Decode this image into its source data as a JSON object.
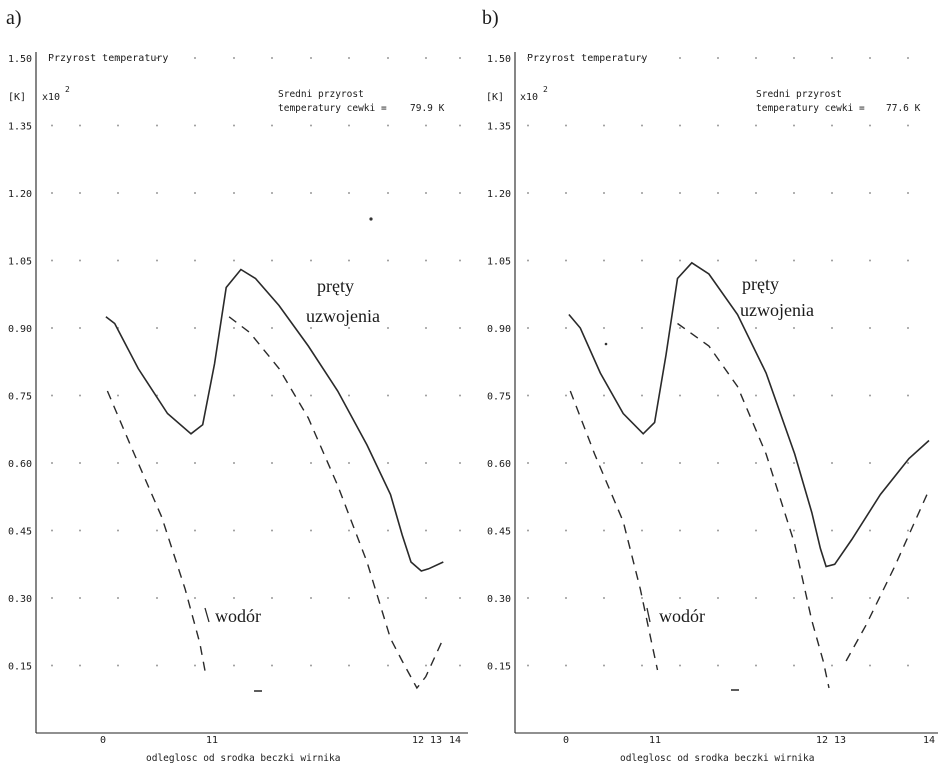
{
  "chart_data": [
    {
      "panel": "a)",
      "type": "line",
      "title": "Przyrost temperatury",
      "ylabel": "[K]",
      "y_multiplier": "x10",
      "y_multiplier_exp": "2",
      "xlabel": "odleglosc od srodka beczki wirnika",
      "ylim": [
        0,
        1.5
      ],
      "y_ticks": [
        "1.50",
        "1.35",
        "1.20",
        "1.05",
        "0.90",
        "0.75",
        "0.60",
        "0.45",
        "0.30",
        "0.15"
      ],
      "x_ticks": [
        "0",
        "11",
        "12",
        "13",
        "14"
      ],
      "annotation_line1": "Sredni przyrost",
      "annotation_line2": "temperatury cewki =",
      "annotation_value": "79.9 K",
      "series": [
        {
          "name": "pręty uzwojenia",
          "style": "solid",
          "points": [
            [
              0.1,
              0.925
            ],
            [
              0.4,
              0.91
            ],
            [
              1.2,
              0.81
            ],
            [
              2.2,
              0.71
            ],
            [
              3.0,
              0.665
            ],
            [
              3.4,
              0.685
            ],
            [
              3.8,
              0.82
            ],
            [
              4.2,
              0.99
            ],
            [
              4.7,
              1.03
            ],
            [
              5.2,
              1.01
            ],
            [
              6.0,
              0.95
            ],
            [
              7.0,
              0.86
            ],
            [
              8.0,
              0.76
            ],
            [
              9.0,
              0.64
            ],
            [
              9.8,
              0.53
            ],
            [
              10.2,
              0.44
            ],
            [
              10.5,
              0.38
            ],
            [
              10.85,
              0.36
            ],
            [
              11.1,
              0.365
            ],
            [
              11.6,
              0.38
            ]
          ]
        },
        {
          "name": "",
          "style": "dashed",
          "points": [
            [
              4.3,
              0.925
            ],
            [
              5.0,
              0.89
            ],
            [
              6.0,
              0.81
            ],
            [
              7.0,
              0.7
            ],
            [
              8.0,
              0.55
            ],
            [
              9.0,
              0.38
            ],
            [
              9.8,
              0.21
            ],
            [
              10.2,
              0.16
            ],
            [
              10.7,
              0.1
            ],
            [
              11.0,
              0.125
            ],
            [
              11.6,
              0.21
            ]
          ]
        },
        {
          "name": "wodór",
          "style": "dashed",
          "points": [
            [
              0.15,
              0.76
            ],
            [
              1.0,
              0.63
            ],
            [
              2.0,
              0.48
            ],
            [
              2.8,
              0.32
            ],
            [
              3.3,
              0.2
            ],
            [
              3.5,
              0.13
            ]
          ]
        }
      ],
      "labels": {
        "rods_line1": "pręty",
        "rods_line2": "uzwojenia",
        "hydrogen": "wodór"
      }
    },
    {
      "panel": "b)",
      "type": "line",
      "title": "Przyrost temperatury",
      "ylabel": "[K]",
      "y_multiplier": "x10",
      "y_multiplier_exp": "2",
      "xlabel": "odleglosc od srodka beczki wirnika",
      "ylim": [
        0,
        1.5
      ],
      "y_ticks": [
        "1.50",
        "1.35",
        "1.20",
        "1.05",
        "0.90",
        "0.75",
        "0.60",
        "0.45",
        "0.30",
        "0.15"
      ],
      "x_ticks": [
        "0",
        "11",
        "12",
        "13",
        "14"
      ],
      "annotation_line1": "Sredni przyrost",
      "annotation_line2": "temperatury cewki =",
      "annotation_value": "77.6 K",
      "series": [
        {
          "name": "pręty uzwojenia",
          "style": "solid",
          "points": [
            [
              0.1,
              0.93
            ],
            [
              0.5,
              0.9
            ],
            [
              1.2,
              0.8
            ],
            [
              2.0,
              0.71
            ],
            [
              2.7,
              0.665
            ],
            [
              3.1,
              0.69
            ],
            [
              3.5,
              0.84
            ],
            [
              3.9,
              1.01
            ],
            [
              4.4,
              1.045
            ],
            [
              5.0,
              1.02
            ],
            [
              6.0,
              0.93
            ],
            [
              7.0,
              0.8
            ],
            [
              8.0,
              0.62
            ],
            [
              8.6,
              0.49
            ],
            [
              8.9,
              0.41
            ],
            [
              9.1,
              0.37
            ],
            [
              9.4,
              0.375
            ],
            [
              10.0,
              0.43
            ],
            [
              11.0,
              0.53
            ],
            [
              12.0,
              0.61
            ],
            [
              12.7,
              0.65
            ]
          ]
        },
        {
          "name": "",
          "style": "dashed",
          "points": [
            [
              3.9,
              0.91
            ],
            [
              5.0,
              0.86
            ],
            [
              6.0,
              0.77
            ],
            [
              7.0,
              0.62
            ],
            [
              8.0,
              0.42
            ],
            [
              8.6,
              0.25
            ],
            [
              9.0,
              0.16
            ],
            [
              9.2,
              0.1
            ]
          ]
        },
        {
          "name": "",
          "style": "dashed",
          "points": [
            [
              9.8,
              0.16
            ],
            [
              10.5,
              0.24
            ],
            [
              11.5,
              0.37
            ],
            [
              12.7,
              0.54
            ]
          ]
        },
        {
          "name": "wodór",
          "style": "dashed",
          "points": [
            [
              0.15,
              0.76
            ],
            [
              1.0,
              0.62
            ],
            [
              2.0,
              0.47
            ],
            [
              2.6,
              0.32
            ],
            [
              3.0,
              0.2
            ],
            [
              3.2,
              0.14
            ]
          ]
        }
      ],
      "labels": {
        "rods_line1": "pręty",
        "rods_line2": "uzwojenia",
        "hydrogen": "wodór"
      }
    }
  ]
}
